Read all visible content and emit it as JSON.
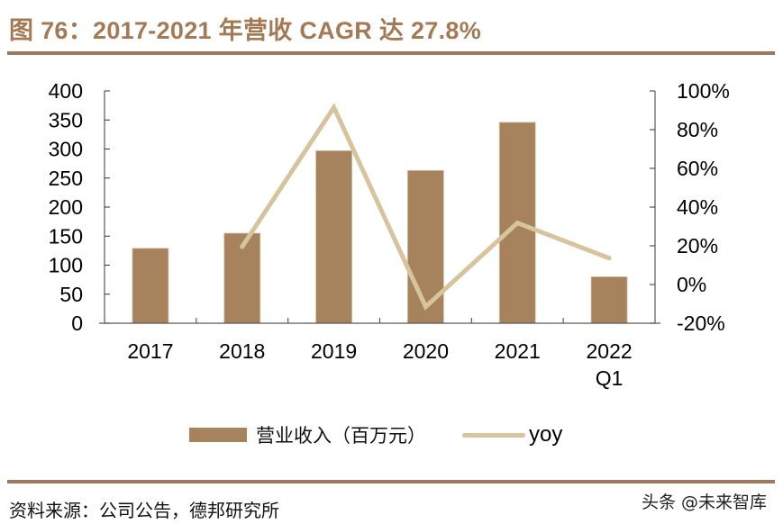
{
  "header": {
    "title": "图 76：2017-2021 年营收 CAGR 达 27.8%"
  },
  "footer": {
    "source": "资料来源：公司公告，德邦研究所",
    "watermark": "头条 @未来智库"
  },
  "colors": {
    "title": "#a47a55",
    "rule": "#a0775a",
    "bar": "#a6835c",
    "line": "#d6c49c",
    "axis": "#595959"
  },
  "chart_data": {
    "type": "bar",
    "title": "图 76：2017-2021 年营收 CAGR 达 27.8%",
    "categories": [
      "2017",
      "2018",
      "2019",
      "2020",
      "2021",
      "2022 Q1"
    ],
    "category_lines": [
      [
        "2017"
      ],
      [
        "2018"
      ],
      [
        "2019"
      ],
      [
        "2020"
      ],
      [
        "2021"
      ],
      [
        "2022",
        "Q1"
      ]
    ],
    "series": [
      {
        "name": "营业收入（百万元）",
        "type": "bar",
        "axis": "left",
        "values": [
          129,
          155,
          297,
          263,
          346,
          80
        ]
      },
      {
        "name": "yoy",
        "type": "line",
        "axis": "right",
        "values": [
          null,
          19.5,
          91.5,
          -11.5,
          31.8,
          13.6
        ],
        "unit": "%"
      }
    ],
    "left_axis": {
      "ylim": [
        0,
        400
      ],
      "ticks": [
        0,
        50,
        100,
        150,
        200,
        250,
        300,
        350,
        400
      ],
      "tick_labels": [
        "0",
        "50",
        "100",
        "150",
        "200",
        "250",
        "300",
        "350",
        "400"
      ]
    },
    "right_axis": {
      "ylim": [
        -20,
        100
      ],
      "ticks": [
        -20,
        0,
        20,
        40,
        60,
        80,
        100
      ],
      "tick_labels": [
        "-20%",
        "0%",
        "20%",
        "40%",
        "60%",
        "80%",
        "100%"
      ]
    },
    "xlabel": "",
    "ylabel": "",
    "grid": false,
    "legend": {
      "position": "bottom",
      "entries": [
        "营业收入（百万元）",
        "yoy"
      ]
    }
  }
}
